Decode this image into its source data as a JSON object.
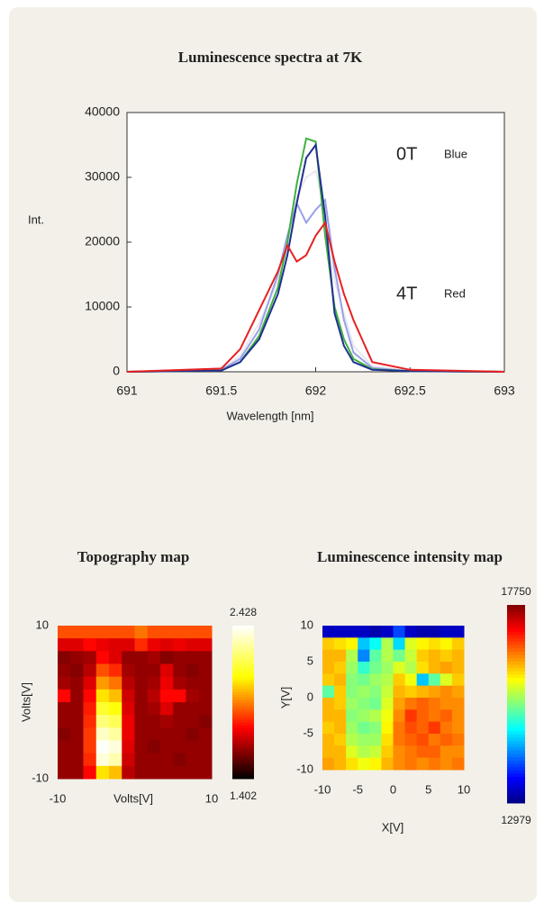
{
  "chart_data": [
    {
      "type": "line",
      "title": "Luminescence spectra at 7K",
      "xlabel": "Wavelength [nm]",
      "ylabel": "Int.",
      "x": [
        691,
        691.5,
        691.6,
        691.7,
        691.8,
        691.85,
        691.9,
        691.95,
        692,
        692.05,
        692.1,
        692.15,
        692.2,
        692.3,
        692.5,
        693
      ],
      "series": [
        {
          "color": "#e8e8f0",
          "values": [
            0,
            300,
            2500,
            7500,
            14000,
            19000,
            27000,
            30000,
            31000,
            25000,
            14000,
            9000,
            4000,
            900,
            100,
            0
          ]
        },
        {
          "color": "#9aa0e8",
          "values": [
            0,
            300,
            2000,
            6500,
            15000,
            21000,
            26000,
            23000,
            25000,
            26500,
            16000,
            8000,
            3000,
            600,
            100,
            0
          ]
        },
        {
          "color": "#40b040",
          "values": [
            0,
            200,
            1500,
            5500,
            13000,
            20000,
            29000,
            36000,
            35500,
            21000,
            10000,
            5000,
            2000,
            400,
            100,
            0
          ]
        },
        {
          "color": "#203090",
          "values": [
            0,
            200,
            1500,
            5000,
            12000,
            18000,
            26000,
            33000,
            35000,
            24000,
            9000,
            4000,
            1500,
            300,
            100,
            0
          ]
        },
        {
          "color": "#e82020",
          "values": [
            0,
            500,
            3500,
            9500,
            15500,
            19500,
            17000,
            18000,
            21000,
            23000,
            17000,
            12000,
            8000,
            1500,
            300,
            0
          ]
        }
      ],
      "xlim": [
        691,
        693
      ],
      "xticks": [
        691,
        691.5,
        692,
        692.5,
        693
      ],
      "ylim": [
        0,
        40000
      ],
      "yticks": [
        0,
        10000,
        20000,
        30000,
        40000
      ],
      "annotations": [
        "0T",
        "Blue",
        "4T",
        "Red"
      ]
    },
    {
      "type": "heatmap",
      "title": "Topography map",
      "xlabel": "Volts[V]",
      "ylabel": "Volts[V]",
      "colormap": "hot",
      "xlim": [
        -10,
        10
      ],
      "xticks": [
        -10,
        10
      ],
      "ylim": [
        -10,
        10
      ],
      "yticks": [
        -10,
        10
      ],
      "zlim": [
        1.402,
        2.428
      ],
      "colorbar_ticks": [
        1.402,
        2.428
      ],
      "z": [
        [
          1.85,
          1.85,
          1.85,
          1.85,
          1.85,
          1.85,
          1.9,
          1.85,
          1.85,
          1.85,
          1.85,
          1.85
        ],
        [
          1.7,
          1.7,
          1.75,
          1.72,
          1.7,
          1.7,
          1.8,
          1.72,
          1.7,
          1.72,
          1.7,
          1.7
        ],
        [
          1.58,
          1.6,
          1.62,
          1.75,
          1.7,
          1.6,
          1.6,
          1.62,
          1.58,
          1.6,
          1.6,
          1.6
        ],
        [
          1.6,
          1.58,
          1.65,
          1.85,
          1.8,
          1.62,
          1.6,
          1.6,
          1.7,
          1.6,
          1.58,
          1.6
        ],
        [
          1.62,
          1.6,
          1.7,
          1.95,
          1.9,
          1.65,
          1.6,
          1.62,
          1.72,
          1.62,
          1.6,
          1.6
        ],
        [
          1.75,
          1.6,
          1.75,
          2.05,
          2.0,
          1.68,
          1.6,
          1.65,
          1.75,
          1.75,
          1.62,
          1.6
        ],
        [
          1.6,
          1.6,
          1.78,
          2.15,
          2.1,
          1.7,
          1.6,
          1.62,
          1.7,
          1.6,
          1.6,
          1.6
        ],
        [
          1.6,
          1.6,
          1.8,
          2.25,
          2.2,
          1.72,
          1.6,
          1.6,
          1.62,
          1.6,
          1.6,
          1.58
        ],
        [
          1.58,
          1.6,
          1.82,
          2.35,
          2.3,
          1.72,
          1.6,
          1.6,
          1.6,
          1.6,
          1.58,
          1.6
        ],
        [
          1.6,
          1.6,
          1.82,
          2.42,
          2.38,
          1.7,
          1.6,
          1.58,
          1.6,
          1.6,
          1.6,
          1.6
        ],
        [
          1.6,
          1.6,
          1.8,
          2.38,
          2.32,
          1.68,
          1.6,
          1.6,
          1.6,
          1.58,
          1.6,
          1.6
        ],
        [
          1.6,
          1.6,
          1.75,
          2.05,
          2.0,
          1.65,
          1.6,
          1.6,
          1.6,
          1.6,
          1.6,
          1.6
        ]
      ]
    },
    {
      "type": "heatmap",
      "title": "Luminescence intensity map",
      "xlabel": "X[V]",
      "ylabel": "Y[V]",
      "colormap": "jet",
      "xlim": [
        -10,
        10
      ],
      "xticks": [
        -10,
        -5,
        0,
        5,
        10
      ],
      "ylim": [
        -10,
        10
      ],
      "yticks": [
        -10,
        -5,
        0,
        5,
        10
      ],
      "zlim": [
        12979,
        17750
      ],
      "colorbar_ticks": [
        12979,
        17750
      ],
      "z": [
        [
          13300,
          13300,
          13300,
          13300,
          13200,
          13300,
          13900,
          13300,
          13200,
          13200,
          13300,
          13300
        ],
        [
          16200,
          16100,
          16000,
          14500,
          14800,
          15600,
          14600,
          15800,
          16000,
          16100,
          16000,
          16200
        ],
        [
          16300,
          16300,
          15600,
          14200,
          15200,
          15600,
          15300,
          15700,
          16200,
          16300,
          16200,
          16300
        ],
        [
          16300,
          16200,
          15500,
          15000,
          15300,
          15500,
          15800,
          15600,
          16100,
          16300,
          16400,
          16300
        ],
        [
          16200,
          16300,
          15400,
          15300,
          15500,
          15600,
          16200,
          15900,
          14500,
          15200,
          15800,
          16200
        ],
        [
          15200,
          16200,
          15400,
          15500,
          15400,
          15700,
          16300,
          16200,
          16300,
          16400,
          16500,
          16400
        ],
        [
          16300,
          16200,
          15500,
          15400,
          15300,
          15800,
          16400,
          16600,
          16700,
          16600,
          16500,
          16500
        ],
        [
          16300,
          16300,
          15400,
          15500,
          15600,
          15900,
          16500,
          16900,
          16700,
          16600,
          16700,
          16500
        ],
        [
          16200,
          16300,
          15500,
          15300,
          15400,
          16000,
          16600,
          16800,
          16700,
          16900,
          16600,
          16500
        ],
        [
          16300,
          16200,
          15600,
          15500,
          15500,
          16100,
          16600,
          16700,
          16800,
          16600,
          16700,
          16600
        ],
        [
          16300,
          16300,
          15800,
          15600,
          15700,
          16200,
          16500,
          16600,
          16700,
          16700,
          16500,
          16500
        ],
        [
          16400,
          16300,
          16100,
          15900,
          16000,
          16300,
          16500,
          16600,
          16500,
          16600,
          16500,
          16600
        ]
      ]
    }
  ]
}
